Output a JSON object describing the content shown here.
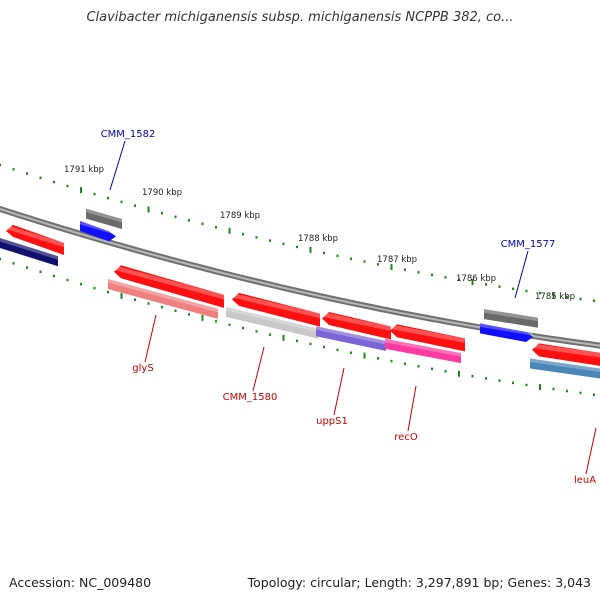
{
  "title": "Clavibacter michiganensis subsp. michiganensis NCPPB 382, co...",
  "footer": {
    "accession": "Accession: NC_009480",
    "topology": "Topology: circular; Length: 3,297,891 bp; Genes: 3,043"
  },
  "colors": {
    "backbone": "#8a8a8a",
    "tick": "#1a8a1a",
    "red_gene": "#ff1010",
    "gray_gene": "#6a6a6a",
    "blue_gene": "#1010ff",
    "navy_gene": "#101070",
    "pink_gene": "#f08080",
    "lightgray_gene": "#c8c8c8",
    "purple_gene": "#7a64d8",
    "magenta_gene": "#ff3aa0",
    "steel_gene": "#4a86b8",
    "label_blue": "#0000cc",
    "label_red": "#cc0000"
  },
  "scale_labels": [
    "1791 kbp",
    "1790 kbp",
    "1789 kbp",
    "1788 kbp",
    "1787 kbp",
    "1786 kbp",
    "1785 kbp"
  ],
  "gene_labels": {
    "blue": [
      "CMM_1582",
      "CMM_1577"
    ],
    "red": [
      "glyS",
      "CMM_1580",
      "uppS1",
      "recO",
      "leuA"
    ]
  }
}
